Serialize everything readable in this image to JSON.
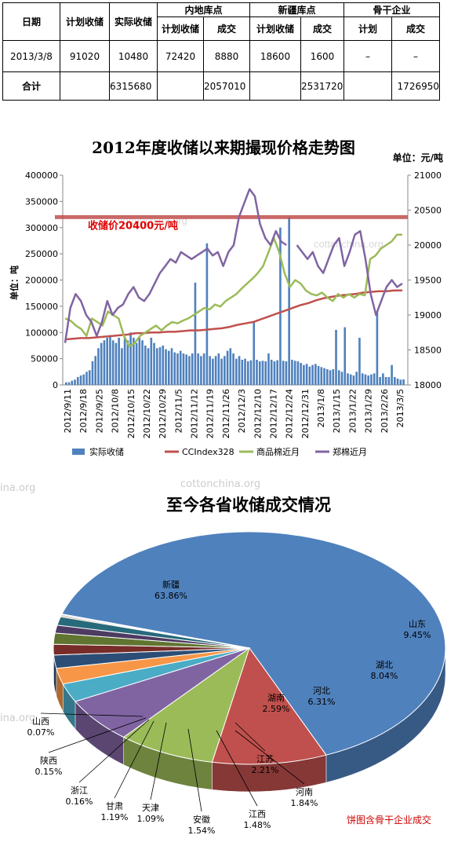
{
  "table": {
    "header_groups": [
      "日期",
      "计划收储",
      "实际收储",
      "内地库点",
      "新疆库点",
      "骨干企业"
    ],
    "sub_headers": [
      "计划收储",
      "成交",
      "计划收储",
      "成交",
      "计划",
      "成交"
    ],
    "rows": [
      [
        "2013/3/8",
        "91020",
        "10480",
        "72420",
        "8880",
        "18600",
        "1600",
        "–",
        "–"
      ],
      [
        "合计",
        "",
        "6315680",
        "",
        "2057010",
        "",
        "2531720",
        "",
        "1726950"
      ]
    ]
  },
  "watermark": "cottonchina.org",
  "chart_data": [
    {
      "type": "bar+line",
      "title": "2012年度收储以来期撮现价格走势图",
      "unit_right": "单位：元/吨",
      "ylabel": "单位：吨",
      "ylim": [
        0,
        400000
      ],
      "y2lim": [
        18000,
        21000
      ],
      "yticks": [
        "0",
        "50000",
        "100000",
        "150000",
        "200000",
        "250000",
        "300000",
        "350000",
        "400000"
      ],
      "y2ticks": [
        "18000",
        "18500",
        "19000",
        "19500",
        "20000",
        "20500",
        "21000"
      ],
      "x_ticks": [
        "2012/9/11",
        "2012/9/18",
        "2012/9/25",
        "2012/10/8",
        "2012/10/15",
        "2012/10/22",
        "2012/10/29",
        "2012/11/5",
        "2012/11/12",
        "2012/11/19",
        "2012/11/26",
        "2012/12/3",
        "2012/12/10",
        "2012/12/17",
        "2012/12/24",
        "2012/12/31",
        "2013/1/8",
        "2013/1/15",
        "2013/1/22",
        "2013/1/29",
        "2013/2/26",
        "2013/3/5"
      ],
      "annotation": "收储价20400元/吨",
      "reference_line": 20400,
      "bars_actual": [
        5000,
        5000,
        8000,
        10000,
        15000,
        18000,
        20000,
        25000,
        28000,
        45000,
        55000,
        70000,
        80000,
        85000,
        90000,
        95000,
        85000,
        80000,
        90000,
        70000,
        90000,
        85000,
        100000,
        90000,
        80000,
        90000,
        85000,
        75000,
        70000,
        90000,
        80000,
        70000,
        72000,
        75000,
        68000,
        65000,
        70000,
        62000,
        60000,
        65000,
        60000,
        58000,
        55000,
        60000,
        195000,
        60000,
        55000,
        60000,
        270000,
        55000,
        50000,
        55000,
        60000,
        50000,
        55000,
        65000,
        70000,
        60000,
        50000,
        55000,
        48000,
        50000,
        45000,
        47000,
        120000,
        48000,
        45000,
        46000,
        45000,
        60000,
        48000,
        45000,
        47000,
        300000,
        46000,
        45000,
        320000,
        48000,
        46000,
        45000,
        42000,
        38000,
        40000,
        35000,
        38000,
        40000,
        36000,
        34000,
        32000,
        30000,
        28000,
        30000,
        105000,
        28000,
        25000,
        110000,
        22000,
        20000,
        18000,
        25000,
        90000,
        22000,
        20000,
        18000,
        20000,
        22000,
        140000,
        15000,
        22000,
        15000,
        15000,
        38000,
        15000,
        12000,
        10000,
        10480
      ],
      "series": [
        {
          "name": "实际收储",
          "color": "#4f81bd"
        },
        {
          "name": "CCIndex328",
          "color": "#c0504d",
          "values": [
            18650,
            18660,
            18670,
            18670,
            18680,
            18690,
            18700,
            18710,
            18720,
            18740,
            18740,
            18750,
            18750,
            18760,
            18760,
            18770,
            18780,
            18780,
            18790,
            18800,
            18810,
            18830,
            18860,
            18880,
            18900,
            18940,
            18980,
            19020,
            19060,
            19100,
            19140,
            19170,
            19210,
            19240,
            19260,
            19280,
            19290,
            19300,
            19320,
            19330,
            19340,
            19340,
            19350,
            19350
          ]
        },
        {
          "name": "商品棉近月",
          "color": "#9bbb59",
          "values": [
            18950,
            18920,
            18850,
            18800,
            18700,
            18950,
            18900,
            18850,
            19050,
            19000,
            18950,
            18700,
            18550,
            18600,
            18700,
            18750,
            18800,
            18850,
            18780,
            18850,
            18900,
            18880,
            18920,
            18950,
            19000,
            19050,
            19100,
            19080,
            19150,
            19120,
            19200,
            19250,
            19300,
            19380,
            19450,
            19520,
            19600,
            19700,
            19900,
            20100,
            19900,
            19600,
            19400,
            19500,
            19450,
            19350,
            19300,
            19280,
            19320,
            19250,
            19200,
            19300,
            19250,
            19300,
            19250,
            19300,
            19280,
            19800,
            19850,
            19950,
            20000,
            20050,
            20150,
            20150
          ]
        },
        {
          "name": "郑棉近月",
          "color": "#8064a2",
          "values": [
            18600,
            19100,
            19300,
            19200,
            19000,
            18900,
            18700,
            18900,
            19200,
            19000,
            19100,
            19150,
            19300,
            19400,
            19250,
            19200,
            19300,
            19450,
            19600,
            19700,
            19800,
            19750,
            19900,
            19850,
            19800,
            19850,
            19900,
            19950,
            19850,
            19900,
            19700,
            19900,
            20000,
            20400,
            20600,
            20800,
            20700,
            20300,
            20100,
            20000,
            20200,
            20050,
            20000,
            null,
            20000,
            19900,
            19800,
            19900,
            19700,
            19600,
            19800,
            20000,
            20100,
            19700,
            19900,
            20150,
            20200,
            19800,
            19300,
            19000,
            19200,
            19400,
            19500,
            19400,
            19450
          ]
        }
      ]
    },
    {
      "type": "pie",
      "title": "至今各省收储成交情况",
      "note": "饼图含骨干企业成交",
      "slices": [
        {
          "label": "新疆",
          "value": 63.86,
          "text": "63.86%",
          "color": "#4f81bd"
        },
        {
          "label": "山东",
          "value": 9.45,
          "text": "9.45%",
          "color": "#c0504d"
        },
        {
          "label": "湖北",
          "value": 8.04,
          "text": "8.04%",
          "color": "#9bbb59"
        },
        {
          "label": "河北",
          "value": 6.31,
          "text": "6.31%",
          "color": "#8064a2"
        },
        {
          "label": "湖南",
          "value": 2.59,
          "text": "2.59%",
          "color": "#4bacc6"
        },
        {
          "label": "江苏",
          "value": 2.21,
          "text": "2.21%",
          "color": "#f79646"
        },
        {
          "label": "河南",
          "value": 1.84,
          "text": "1.84%",
          "color": "#2c4d75"
        },
        {
          "label": "江西",
          "value": 1.48,
          "text": "1.48%",
          "color": "#772c2a"
        },
        {
          "label": "安徽",
          "value": 1.54,
          "text": "1.54%",
          "color": "#5f7530"
        },
        {
          "label": "天津",
          "value": 1.09,
          "text": "1.09%",
          "color": "#4d3b62"
        },
        {
          "label": "甘肃",
          "value": 1.19,
          "text": "1.19%",
          "color": "#276a7c"
        },
        {
          "label": "浙江",
          "value": 0.16,
          "text": "0.16%",
          "color": "#b65708"
        },
        {
          "label": "陕西",
          "value": 0.15,
          "text": "0.15%",
          "color": "#729aca"
        },
        {
          "label": "山西",
          "value": 0.07,
          "text": "0.07%",
          "color": "#cd7371"
        }
      ]
    }
  ]
}
